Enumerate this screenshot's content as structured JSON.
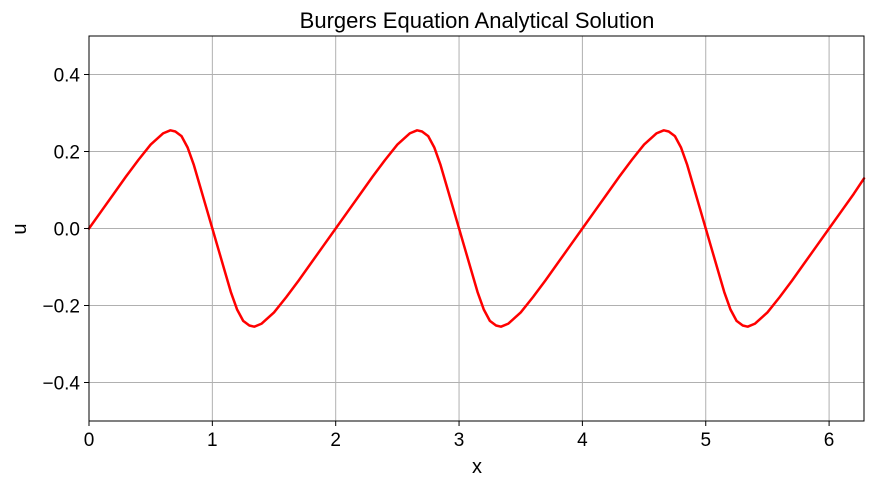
{
  "chart_data": {
    "type": "line",
    "title": "Burgers Equation Analytical Solution",
    "xlabel": "x",
    "ylabel": "u",
    "xlim": [
      0,
      6.283
    ],
    "ylim": [
      -0.5,
      0.5
    ],
    "xticks": [
      0,
      1,
      2,
      3,
      4,
      5,
      6
    ],
    "xtick_labels": [
      "0",
      "1",
      "2",
      "3",
      "4",
      "5",
      "6"
    ],
    "yticks": [
      -0.4,
      -0.2,
      0.0,
      0.2,
      0.4
    ],
    "ytick_labels": [
      "−0.4",
      "−0.2",
      "0.0",
      "0.2",
      "0.4"
    ],
    "grid": true,
    "series": [
      {
        "color": "#ff0000",
        "x": [
          0,
          0.1,
          0.2,
          0.3,
          0.4,
          0.5,
          0.6,
          0.66,
          0.7,
          0.75,
          0.8,
          0.85,
          0.9,
          0.95,
          1.0,
          1.05,
          1.1,
          1.15,
          1.2,
          1.25,
          1.3,
          1.34,
          1.4,
          1.5,
          1.6,
          1.7,
          1.8,
          1.9,
          2.0,
          2.1,
          2.2,
          2.3,
          2.4,
          2.5,
          2.6,
          2.66,
          2.7,
          2.75,
          2.8,
          2.85,
          2.9,
          2.95,
          3.0,
          3.05,
          3.1,
          3.15,
          3.2,
          3.25,
          3.3,
          3.34,
          3.4,
          3.5,
          3.6,
          3.7,
          3.8,
          3.9,
          4.0,
          4.1,
          4.2,
          4.3,
          4.4,
          4.5,
          4.6,
          4.66,
          4.7,
          4.75,
          4.8,
          4.85,
          4.9,
          4.95,
          5.0,
          5.05,
          5.1,
          5.15,
          5.2,
          5.25,
          5.3,
          5.34,
          5.4,
          5.5,
          5.6,
          5.7,
          5.8,
          5.9,
          6.0,
          6.1,
          6.2,
          6.283
        ],
        "y": [
          0.0,
          0.045,
          0.09,
          0.135,
          0.178,
          0.218,
          0.247,
          0.255,
          0.252,
          0.24,
          0.21,
          0.165,
          0.11,
          0.055,
          0.0,
          -0.055,
          -0.11,
          -0.165,
          -0.21,
          -0.24,
          -0.252,
          -0.255,
          -0.247,
          -0.218,
          -0.178,
          -0.135,
          -0.09,
          -0.045,
          0.0,
          0.045,
          0.09,
          0.135,
          0.178,
          0.218,
          0.247,
          0.255,
          0.252,
          0.24,
          0.21,
          0.165,
          0.11,
          0.055,
          0.0,
          -0.055,
          -0.11,
          -0.165,
          -0.21,
          -0.24,
          -0.252,
          -0.255,
          -0.247,
          -0.218,
          -0.178,
          -0.135,
          -0.09,
          -0.045,
          0.0,
          0.045,
          0.09,
          0.135,
          0.178,
          0.218,
          0.247,
          0.255,
          0.252,
          0.24,
          0.21,
          0.165,
          0.11,
          0.055,
          0.0,
          -0.055,
          -0.11,
          -0.165,
          -0.21,
          -0.24,
          -0.252,
          -0.255,
          -0.247,
          -0.218,
          -0.178,
          -0.135,
          -0.09,
          -0.045,
          0.0,
          0.045,
          0.09,
          0.13
        ]
      }
    ]
  }
}
